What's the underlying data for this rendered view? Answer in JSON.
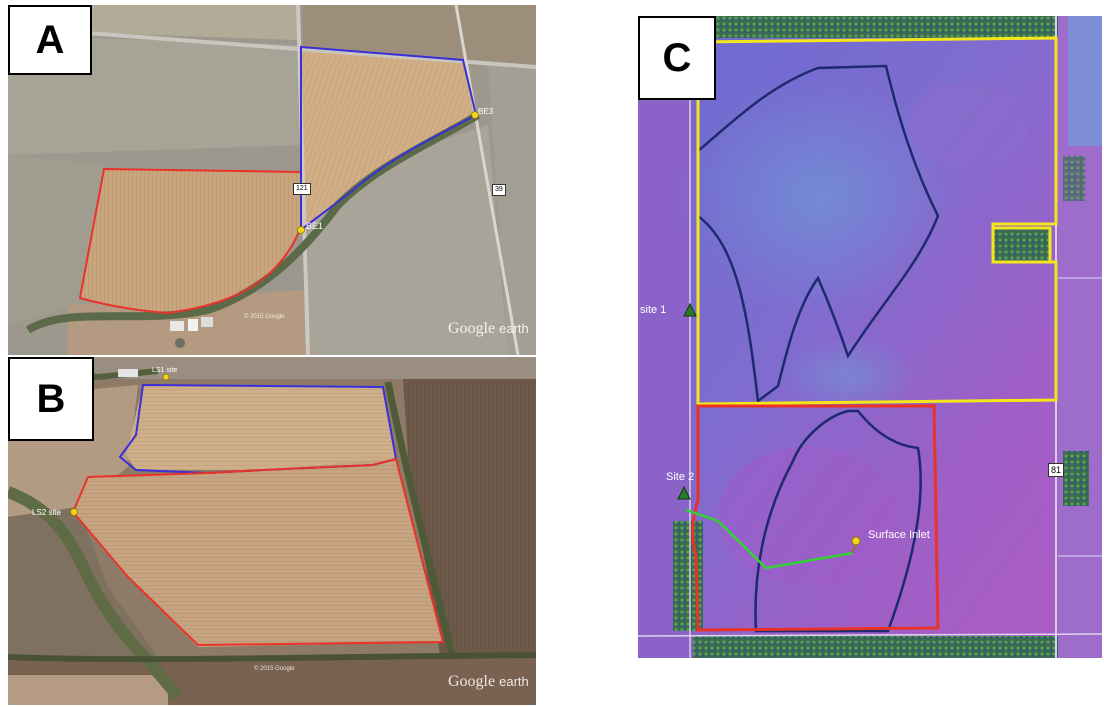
{
  "panels": {
    "a": {
      "letter": "A",
      "watermark_brand": "Google",
      "watermark_suffix": "earth",
      "copyright": "© 2015 Google",
      "labels": {
        "be1": "BE1",
        "be3": "BE3"
      },
      "road_shields": {
        "r121": "121",
        "r39": "39"
      },
      "field_colors": {
        "field_1": "#e8322a",
        "field_2": "#3a2fd8"
      }
    },
    "b": {
      "letter": "B",
      "watermark_brand": "Google",
      "watermark_suffix": "earth",
      "copyright": "© 2015 Google",
      "labels": {
        "ls1": "LS1 site",
        "ls2": "LS2 site"
      },
      "field_colors": {
        "field_1": "#3a2fd8",
        "field_2": "#e8322a"
      }
    },
    "c": {
      "letter": "C",
      "labels": {
        "site1": "site 1",
        "site2": "Site 2",
        "inlet": "Surface Inlet"
      },
      "road_shields": {
        "r81": "81"
      },
      "field_colors": {
        "boundary_upper": "#f5e61a",
        "boundary_lower": "#e8322a",
        "flow_path": "#32d232",
        "sub_watershed": "#1d2a6e"
      }
    }
  }
}
